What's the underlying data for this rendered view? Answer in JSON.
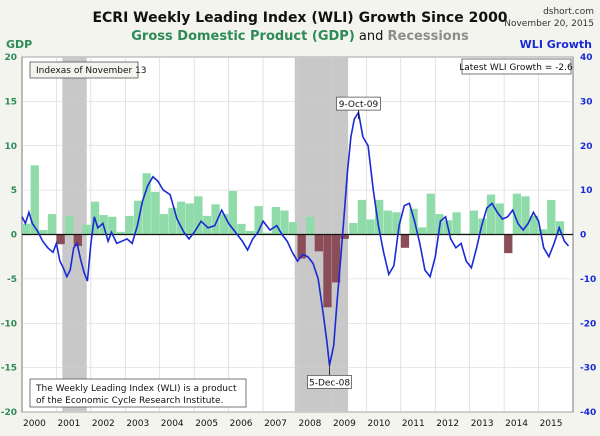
{
  "chart_data": {
    "type": "bar+line",
    "title": "ECRI Weekly Leading Index (WLI) Growth Since 2000",
    "subtitle_gdp": "Gross Domestic Product (GDP)",
    "subtitle_and": " and ",
    "subtitle_recessions": "Recessions",
    "source": "dshort.com",
    "date": "November 20, 2015",
    "left_axis_label": "GDP",
    "right_axis_label": "WLI Growth",
    "left_ylim": [
      -20,
      20
    ],
    "right_ylim": [
      -40,
      40
    ],
    "xlim": [
      2000,
      2016
    ],
    "left_ticks": [
      "20",
      "15",
      "10",
      "5",
      "0",
      "-5",
      "-10",
      "-15",
      "-20"
    ],
    "right_ticks": [
      "40",
      "30",
      "20",
      "10",
      "0",
      "-10",
      "-20",
      "-30",
      "-40"
    ],
    "x_ticks": [
      "2000",
      "2001",
      "2002",
      "2003",
      "2004",
      "2005",
      "2006",
      "2007",
      "2008",
      "2009",
      "2010",
      "2011",
      "2012",
      "2013",
      "2014",
      "2015"
    ],
    "index_note": "Indexas of November 13",
    "latest_label": "Latest WLI Growth = -2.6",
    "bottom_note_line1": "The Weekly Leading Index (WLI) is a product",
    "bottom_note_line2": "of the Economic Cycle Research Institute.",
    "annotations": [
      {
        "label": "9-Oct-09",
        "x": 2009.77,
        "y": 26
      },
      {
        "label": "5-Dec-08",
        "x": 2008.93,
        "y": -29.5
      }
    ],
    "recessions": [
      [
        2001.17,
        2001.88
      ],
      [
        2007.92,
        2009.47
      ]
    ],
    "colors": {
      "gdp_positive": "#8fdcaa",
      "gdp_negative": "#8b4d58",
      "wli_line": "#1a2ad6",
      "recession": "#c8c8c8",
      "gdp_text": "#2e8b57",
      "recession_text": "#8c8c8c"
    },
    "gdp_series": {
      "name": "GDP",
      "quarters": [
        2000.0,
        2000.25,
        2000.5,
        2000.75,
        2001.0,
        2001.25,
        2001.5,
        2001.75,
        2002.0,
        2002.25,
        2002.5,
        2002.75,
        2003.0,
        2003.25,
        2003.5,
        2003.75,
        2004.0,
        2004.25,
        2004.5,
        2004.75,
        2005.0,
        2005.25,
        2005.5,
        2005.75,
        2006.0,
        2006.25,
        2006.5,
        2006.75,
        2007.0,
        2007.25,
        2007.5,
        2007.75,
        2008.0,
        2008.25,
        2008.5,
        2008.75,
        2009.0,
        2009.25,
        2009.5,
        2009.75,
        2010.0,
        2010.25,
        2010.5,
        2010.75,
        2011.0,
        2011.25,
        2011.5,
        2011.75,
        2012.0,
        2012.25,
        2012.5,
        2012.75,
        2013.0,
        2013.25,
        2013.5,
        2013.75,
        2014.0,
        2014.25,
        2014.5,
        2014.75,
        2015.0,
        2015.25,
        2015.5
      ],
      "values": [
        1.2,
        7.8,
        0.5,
        2.3,
        -1.1,
        2.1,
        -1.3,
        1.1,
        3.7,
        2.2,
        2.0,
        0.3,
        2.1,
        3.8,
        6.9,
        4.8,
        2.3,
        3.0,
        3.7,
        3.5,
        4.3,
        2.1,
        3.4,
        2.3,
        4.9,
        1.2,
        0.4,
        3.2,
        0.2,
        3.1,
        2.7,
        1.4,
        -2.7,
        2.0,
        -1.9,
        -8.2,
        -5.4,
        -0.5,
        1.3,
        3.9,
        1.7,
        3.9,
        2.7,
        2.5,
        -1.5,
        2.9,
        0.8,
        4.6,
        2.3,
        1.6,
        2.5,
        0.1,
        2.7,
        1.8,
        4.5,
        3.5,
        -2.1,
        4.6,
        4.3,
        2.1,
        0.6,
        3.9,
        1.5
      ]
    },
    "wli_series": {
      "name": "WLI Growth",
      "x": [
        2000.0,
        2000.1,
        2000.2,
        2000.3,
        2000.45,
        2000.6,
        2000.75,
        2000.9,
        2001.0,
        2001.1,
        2001.2,
        2001.3,
        2001.4,
        2001.5,
        2001.6,
        2001.7,
        2001.8,
        2001.9,
        2002.0,
        2002.1,
        2002.2,
        2002.35,
        2002.5,
        2002.6,
        2002.75,
        2002.9,
        2003.05,
        2003.2,
        2003.35,
        2003.5,
        2003.65,
        2003.8,
        2003.95,
        2004.1,
        2004.3,
        2004.5,
        2004.7,
        2004.85,
        2005.0,
        2005.2,
        2005.4,
        2005.6,
        2005.8,
        2006.0,
        2006.2,
        2006.4,
        2006.55,
        2006.7,
        2006.85,
        2007.0,
        2007.2,
        2007.4,
        2007.55,
        2007.7,
        2007.85,
        2008.0,
        2008.15,
        2008.3,
        2008.45,
        2008.6,
        2008.75,
        2008.85,
        2008.93,
        2009.05,
        2009.15,
        2009.25,
        2009.35,
        2009.45,
        2009.55,
        2009.65,
        2009.77,
        2009.9,
        2010.05,
        2010.2,
        2010.35,
        2010.5,
        2010.65,
        2010.8,
        2010.95,
        2011.1,
        2011.25,
        2011.4,
        2011.55,
        2011.7,
        2011.85,
        2012.0,
        2012.15,
        2012.3,
        2012.45,
        2012.6,
        2012.75,
        2012.9,
        2013.05,
        2013.2,
        2013.35,
        2013.5,
        2013.65,
        2013.8,
        2013.95,
        2014.1,
        2014.25,
        2014.4,
        2014.55,
        2014.7,
        2014.85,
        2015.0,
        2015.15,
        2015.3,
        2015.45,
        2015.6,
        2015.75,
        2015.87
      ],
      "values": [
        4.0,
        2.5,
        5.0,
        2.5,
        0.8,
        -1.5,
        -3.0,
        -4.0,
        -2.0,
        -6.0,
        -7.5,
        -9.5,
        -8.0,
        -3.0,
        -2.0,
        -5.5,
        -8.5,
        -10.5,
        -2.0,
        4.0,
        1.5,
        2.5,
        -1.5,
        0.5,
        -2.0,
        -1.5,
        -1.0,
        -2.0,
        2.0,
        7.5,
        11.0,
        13.0,
        12.0,
        10.0,
        9.0,
        3.5,
        0.5,
        -1.0,
        0.5,
        3.0,
        1.5,
        2.0,
        5.5,
        2.5,
        0.5,
        -1.5,
        -3.5,
        -1.0,
        0.5,
        3.0,
        1.0,
        2.0,
        0.0,
        -1.5,
        -4.0,
        -6.0,
        -4.5,
        -5.0,
        -6.5,
        -10.0,
        -18.0,
        -24.0,
        -29.5,
        -25.0,
        -15.0,
        -6.0,
        4.0,
        14.0,
        22.0,
        26.0,
        27.5,
        22.0,
        20.0,
        10.0,
        2.0,
        -4.0,
        -9.0,
        -7.0,
        2.0,
        6.5,
        7.0,
        3.0,
        -2.0,
        -8.0,
        -9.5,
        -5.0,
        3.0,
        4.0,
        -1.0,
        -3.0,
        -2.0,
        -6.0,
        -7.5,
        -3.0,
        2.0,
        6.0,
        7.0,
        5.0,
        3.5,
        4.0,
        5.5,
        2.5,
        1.0,
        2.5,
        5.0,
        3.0,
        -3.0,
        -5.0,
        -2.0,
        1.5,
        -1.5,
        -2.6
      ]
    }
  }
}
